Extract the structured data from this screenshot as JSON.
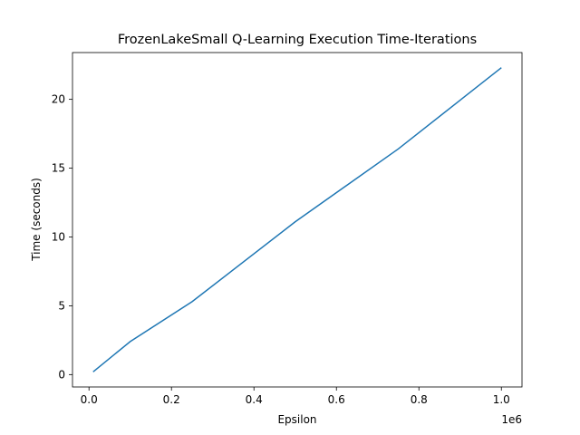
{
  "chart_data": {
    "type": "line",
    "title": "FrozenLakeSmall Q-Learning Execution Time-Iterations",
    "xlabel": "Epsilon",
    "ylabel": "Time (seconds)",
    "x_offset_label": "1e6",
    "xlim": [
      -0.04,
      1.05
    ],
    "ylim": [
      -0.9,
      23.4
    ],
    "x_ticks": [
      0.0,
      0.2,
      0.4,
      0.6,
      0.8,
      1.0
    ],
    "x_tick_labels": [
      "0.0",
      "0.2",
      "0.4",
      "0.6",
      "0.8",
      "1.0"
    ],
    "y_ticks": [
      0,
      5,
      10,
      15,
      20
    ],
    "y_tick_labels": [
      "0",
      "5",
      "10",
      "15",
      "20"
    ],
    "grid": false,
    "series": [
      {
        "color": "#1f77b4",
        "x": [
          0.01,
          0.1,
          0.25,
          0.5,
          0.75,
          1.0
        ],
        "y": [
          0.2,
          2.4,
          5.3,
          11.1,
          16.4,
          22.3
        ]
      }
    ]
  }
}
